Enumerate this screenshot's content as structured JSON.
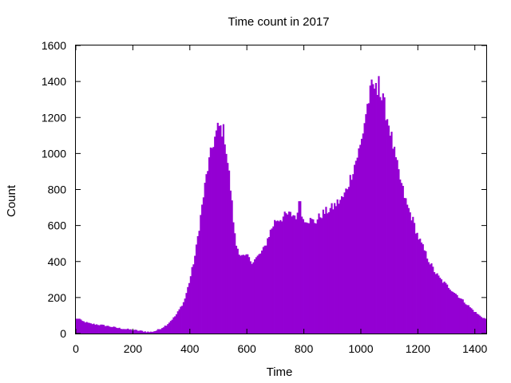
{
  "chart_data": {
    "type": "bar",
    "title": "Time count in 2017",
    "xlabel": "Time",
    "ylabel": "Count",
    "xlim": [
      0,
      1440
    ],
    "ylim": [
      0,
      1600
    ],
    "xticks": [
      0,
      200,
      400,
      600,
      800,
      1000,
      1200,
      1400
    ],
    "yticks": [
      0,
      200,
      400,
      600,
      800,
      1000,
      1200,
      1400,
      1600
    ],
    "bin_width": 5,
    "grid": false,
    "legend": "none",
    "bar_color": "#9400d3",
    "profile": {
      "x": [
        0,
        10,
        20,
        50,
        100,
        150,
        200,
        240,
        260,
        280,
        300,
        320,
        350,
        380,
        400,
        420,
        440,
        460,
        480,
        500,
        520,
        540,
        560,
        580,
        600,
        620,
        640,
        660,
        680,
        700,
        720,
        740,
        760,
        780,
        800,
        820,
        840,
        860,
        880,
        900,
        920,
        940,
        960,
        980,
        1000,
        1020,
        1040,
        1050,
        1060,
        1080,
        1100,
        1120,
        1140,
        1160,
        1180,
        1200,
        1220,
        1240,
        1260,
        1280,
        1300,
        1320,
        1340,
        1360,
        1380,
        1400,
        1420,
        1440
      ],
      "y": [
        80,
        85,
        70,
        55,
        45,
        30,
        20,
        12,
        8,
        15,
        30,
        50,
        100,
        180,
        300,
        450,
        680,
        900,
        1050,
        1150,
        1120,
        850,
        500,
        430,
        420,
        400,
        430,
        470,
        560,
        630,
        640,
        660,
        660,
        650,
        640,
        630,
        620,
        660,
        680,
        700,
        730,
        760,
        850,
        950,
        1050,
        1250,
        1380,
        1350,
        1350,
        1280,
        1150,
        980,
        840,
        720,
        640,
        540,
        470,
        400,
        340,
        300,
        270,
        240,
        210,
        180,
        150,
        120,
        95,
        80
      ]
    },
    "spikes": [
      {
        "x": 785,
        "y": 735
      },
      {
        "x": 1007,
        "y": 950
      },
      {
        "x": 1027,
        "y": 1270
      },
      {
        "x": 1047,
        "y": 1360
      },
      {
        "x": 1062,
        "y": 1430
      },
      {
        "x": 600,
        "y": 440
      },
      {
        "x": 678,
        "y": 450
      }
    ]
  }
}
